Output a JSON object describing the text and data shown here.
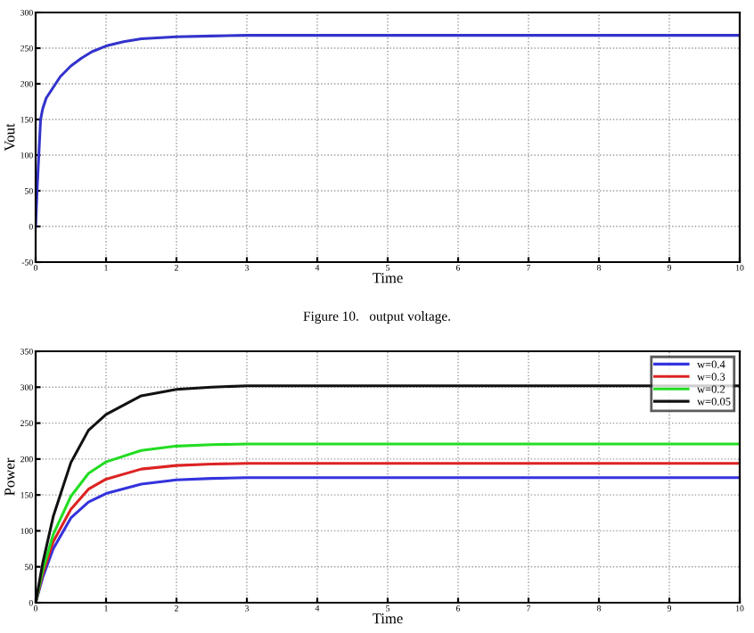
{
  "chart_data": [
    {
      "type": "line",
      "xlabel": "Time",
      "ylabel": "Vout",
      "xlim": [
        0,
        10
      ],
      "ylim": [
        -50,
        300
      ],
      "xticks": [
        0,
        1,
        2,
        3,
        4,
        5,
        6,
        7,
        8,
        9,
        10
      ],
      "yticks": [
        -50,
        0,
        50,
        100,
        150,
        200,
        250,
        300
      ],
      "grid": true,
      "legend": false,
      "annotations": [
        "Figure 10.   output voltage."
      ],
      "series": [
        {
          "color": "#3333cc",
          "x": [
            0,
            0.02,
            0.05,
            0.07,
            0.1,
            0.15,
            0.25,
            0.35,
            0.5,
            0.65,
            0.8,
            1,
            1.25,
            1.5,
            2,
            2.5,
            3,
            4,
            6,
            8,
            10
          ],
          "values": [
            0,
            50,
            110,
            150,
            165,
            180,
            195,
            210,
            225,
            236,
            245,
            253,
            259,
            263,
            266,
            267,
            268,
            268,
            268,
            268,
            268
          ]
        }
      ]
    },
    {
      "type": "line",
      "xlabel": "Time",
      "ylabel": "Power",
      "xlim": [
        0,
        10
      ],
      "ylim": [
        0,
        350
      ],
      "xticks": [
        0,
        1,
        2,
        3,
        4,
        5,
        6,
        7,
        8,
        9,
        10
      ],
      "yticks": [
        0,
        50,
        100,
        150,
        200,
        250,
        300,
        350
      ],
      "grid": true,
      "legend": "top right",
      "series": [
        {
          "name": "w=0.4",
          "color": "#3333dd",
          "x": [
            0,
            0.1,
            0.25,
            0.5,
            0.75,
            1,
            1.5,
            2,
            2.5,
            3,
            4,
            6,
            8,
            10
          ],
          "values": [
            0,
            35,
            75,
            118,
            140,
            152,
            165,
            171,
            173,
            174,
            174,
            174,
            174,
            174
          ]
        },
        {
          "name": "w=0.3",
          "color": "#dd2222",
          "x": [
            0,
            0.1,
            0.25,
            0.5,
            0.75,
            1,
            1.5,
            2,
            2.5,
            3,
            4,
            6,
            8,
            10
          ],
          "values": [
            0,
            40,
            85,
            130,
            158,
            172,
            186,
            191,
            193,
            194,
            194,
            194,
            194,
            194
          ]
        },
        {
          "name": "w=0.2",
          "color": "#22dd22",
          "x": [
            0,
            0.1,
            0.25,
            0.5,
            0.75,
            1,
            1.5,
            2,
            2.5,
            3,
            4,
            6,
            8,
            10
          ],
          "values": [
            0,
            45,
            95,
            148,
            180,
            196,
            212,
            218,
            220,
            221,
            221,
            221,
            221,
            221
          ]
        },
        {
          "name": "w=0.05",
          "color": "#111111",
          "x": [
            0,
            0.1,
            0.25,
            0.5,
            0.75,
            1,
            1.5,
            2,
            2.5,
            3,
            4,
            6,
            8,
            10
          ],
          "values": [
            0,
            55,
            120,
            195,
            240,
            262,
            288,
            297,
            300,
            302,
            302,
            302,
            302,
            302
          ]
        }
      ]
    }
  ]
}
